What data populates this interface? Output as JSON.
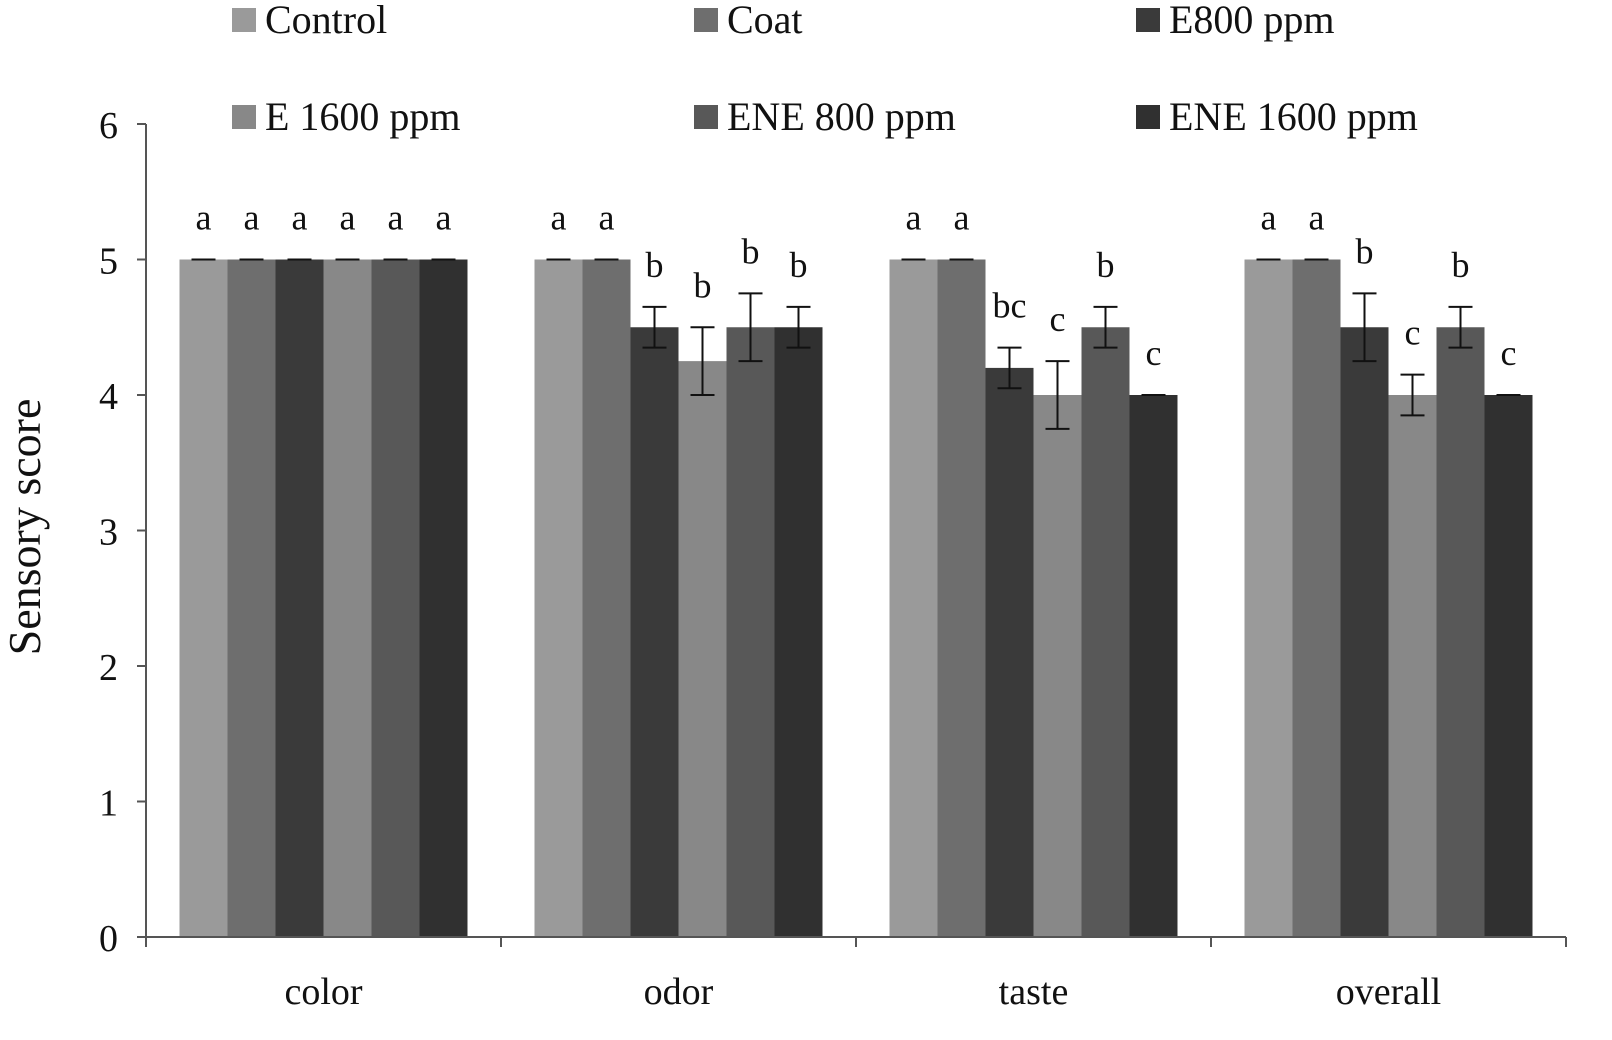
{
  "chart_data": {
    "type": "bar",
    "title": "",
    "xlabel": "",
    "ylabel": "Sensory score",
    "ylim": [
      0,
      6
    ],
    "yticks": [
      "0",
      "1",
      "2",
      "3",
      "4",
      "5",
      "6"
    ],
    "grid": false,
    "legend_position": "top",
    "categories": [
      "color",
      "odor",
      "taste",
      "overall"
    ],
    "series": [
      {
        "name": "Control",
        "color": "#9a9a9a",
        "values": [
          5,
          5,
          5,
          5
        ],
        "errors": [
          0,
          0,
          0,
          0
        ],
        "letters": [
          "a",
          "a",
          "a",
          "a"
        ]
      },
      {
        "name": "Coat",
        "color": "#6e6e6e",
        "values": [
          5,
          5,
          5,
          5
        ],
        "errors": [
          0,
          0,
          0,
          0
        ],
        "letters": [
          "a",
          "a",
          "a",
          "a"
        ]
      },
      {
        "name": "E800 ppm",
        "color": "#3a3a3a",
        "values": [
          5,
          4.5,
          4.2,
          4.5
        ],
        "errors": [
          0,
          0.15,
          0.15,
          0.25
        ],
        "letters": [
          "a",
          "b",
          "bc",
          "b"
        ]
      },
      {
        "name": "E 1600 ppm",
        "color": "#888888",
        "values": [
          5,
          4.25,
          4.0,
          4.0
        ],
        "errors": [
          0,
          0.25,
          0.25,
          0.15
        ],
        "letters": [
          "a",
          "b",
          "c",
          "c"
        ]
      },
      {
        "name": "ENE 800 ppm",
        "color": "#585858",
        "values": [
          5,
          4.5,
          4.5,
          4.5
        ],
        "errors": [
          0,
          0.25,
          0.15,
          0.15
        ],
        "letters": [
          "a",
          "b",
          "b",
          "b"
        ]
      },
      {
        "name": "ENE 1600 ppm",
        "color": "#303030",
        "values": [
          5,
          4.5,
          4.0,
          4.0
        ],
        "errors": [
          0,
          0.15,
          0,
          0
        ],
        "letters": [
          "a",
          "b",
          "c",
          "c"
        ]
      }
    ]
  }
}
